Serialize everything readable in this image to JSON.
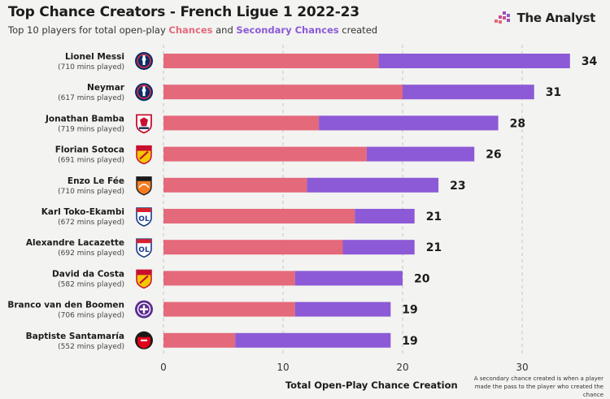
{
  "header": {
    "title": "Top Chance Creators - French Ligue 1 2022-23",
    "subtitle_prefix": "Top 10 players for total open-play ",
    "subtitle_series1": "Chances",
    "subtitle_mid": " and ",
    "subtitle_series2": "Secondary Chances",
    "subtitle_suffix": " created"
  },
  "brand": {
    "name": "The Analyst",
    "icon": "analyst-logo-icon"
  },
  "footnote": "A secondary chance created is when a player made the pass to the player who created the chance",
  "colors": {
    "chances": "#e4697a",
    "secondary": "#8c5ad6",
    "grid": "#c4c4c4",
    "background": "#f3f3f1"
  },
  "chart_data": {
    "type": "bar",
    "orientation": "horizontal",
    "stacked": true,
    "xlabel": "Total Open-Play Chance Creation",
    "xlim": [
      0,
      34
    ],
    "xticks": [
      0,
      10,
      20,
      30
    ],
    "grid": true,
    "categories": [
      "Lionel Messi",
      "Neymar",
      "Jonathan Bamba",
      "Florian Sotoca",
      "Enzo Le Fée",
      "Karl Toko-Ekambi",
      "Alexandre Lacazette",
      "David da Costa",
      "Branco van den Boomen",
      "Baptiste Santamaría"
    ],
    "minutes": [
      "(710 mins played)",
      "(617 mins played)",
      "(719 mins played)",
      "(691 mins played)",
      "(710 mins played)",
      "(672 mins played)",
      "(692 mins played)",
      "(582 mins played)",
      "(706 mins played)",
      "(552 mins played)"
    ],
    "club_icons": [
      "psg-crest-icon",
      "psg-crest-icon",
      "lille-crest-icon",
      "lens-crest-icon",
      "lorient-crest-icon",
      "lyon-crest-icon",
      "lyon-crest-icon",
      "lens-crest-icon",
      "toulouse-crest-icon",
      "rennes-crest-icon"
    ],
    "series": [
      {
        "name": "Chances",
        "values": [
          18,
          20,
          13,
          17,
          12,
          16,
          15,
          11,
          11,
          6
        ]
      },
      {
        "name": "Secondary Chances",
        "values": [
          16,
          11,
          15,
          9,
          11,
          5,
          6,
          9,
          8,
          13
        ]
      }
    ],
    "totals": [
      34,
      31,
      28,
      26,
      23,
      21,
      21,
      20,
      19,
      19
    ]
  }
}
